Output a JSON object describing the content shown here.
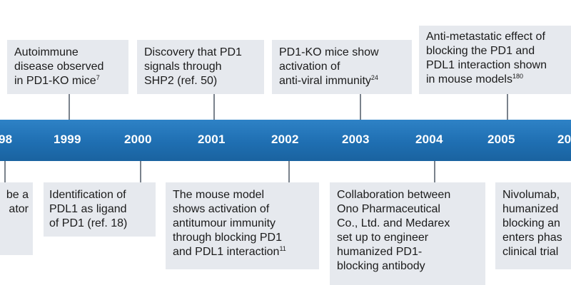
{
  "years": [
    "98",
    "1999",
    "2000",
    "2001",
    "2002",
    "2003",
    "2004",
    "2005",
    "20"
  ],
  "top_events": [
    {
      "lines": [
        "Autoimmune",
        "disease observed",
        "in PD1-KO mice"
      ],
      "ref": "7"
    },
    {
      "lines": [
        "Discovery that PD1",
        "signals through",
        "SHP2 (ref. 50)"
      ],
      "ref": ""
    },
    {
      "lines": [
        "PD1-KO mice show",
        "activation of",
        "anti-viral immunity"
      ],
      "ref": "24"
    },
    {
      "lines": [
        "Anti-metastatic effect of",
        "blocking the PD1 and",
        "PDL1 interaction shown",
        "in mouse models"
      ],
      "ref": "180"
    }
  ],
  "bottom_events": [
    {
      "lines": [
        "be a",
        "ator"
      ],
      "ref": ""
    },
    {
      "lines": [
        "Identification of",
        "PDL1 as ligand",
        "of PD1 (ref. 18)"
      ],
      "ref": ""
    },
    {
      "lines": [
        "The mouse model",
        "shows activation of",
        "antitumour immunity",
        "through blocking PD1",
        "and PDL1 interaction"
      ],
      "ref": "11"
    },
    {
      "lines": [
        "Collaboration between",
        "Ono Pharmaceutical",
        "Co., Ltd. and Medarex",
        "set up to engineer",
        "humanized PD1-",
        "blocking antibody"
      ],
      "ref": ""
    },
    {
      "lines": [
        "Nivolumab,",
        "humanized",
        "blocking an",
        "enters phas",
        "clinical trial"
      ],
      "ref": ""
    }
  ],
  "colors": {
    "axis": "#1f6fb2",
    "box": "#e6e9ee",
    "connector": "#7a828c",
    "text": "#1b1b1b",
    "year_text": "#ffffff"
  }
}
